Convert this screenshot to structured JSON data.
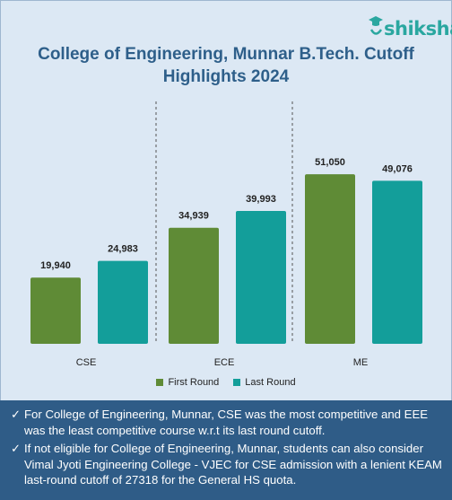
{
  "brand": {
    "name": "shiksha",
    "icon": "graduation-cap-icon"
  },
  "title_lines": [
    "College of Engineering, Munnar B.Tech. Cutoff",
    "Highlights 2024"
  ],
  "colors": {
    "first_round": "#5f8b36",
    "last_round": "#139e9a",
    "panel": "#2f5c87"
  },
  "chart_data": {
    "type": "bar",
    "title": "College of Engineering, Munnar B.Tech. Cutoff Highlights 2024",
    "categories": [
      "CSE",
      "ECE",
      "ME"
    ],
    "series": [
      {
        "name": "First Round",
        "values": [
          19940,
          34939,
          51050
        ],
        "labels": [
          "19,940",
          "34,939",
          "51,050"
        ]
      },
      {
        "name": "Last Round",
        "values": [
          24983,
          39993,
          49076
        ],
        "labels": [
          "24,983",
          "39,993",
          "49,076"
        ]
      }
    ],
    "ylim": [
      0,
      60000
    ],
    "grid": false,
    "legend": "bottom"
  },
  "notes": [
    "For College of Engineering, Munnar, CSE was the most competitive and EEE was the least competitive course w.r.t its last round cutoff.",
    "If not eligible for College of Engineering, Munnar, students can also consider Vimal Jyoti Engineering College - VJEC for CSE admission with a lenient KEAM last-round cutoff of 27318 for the General HS quota."
  ]
}
